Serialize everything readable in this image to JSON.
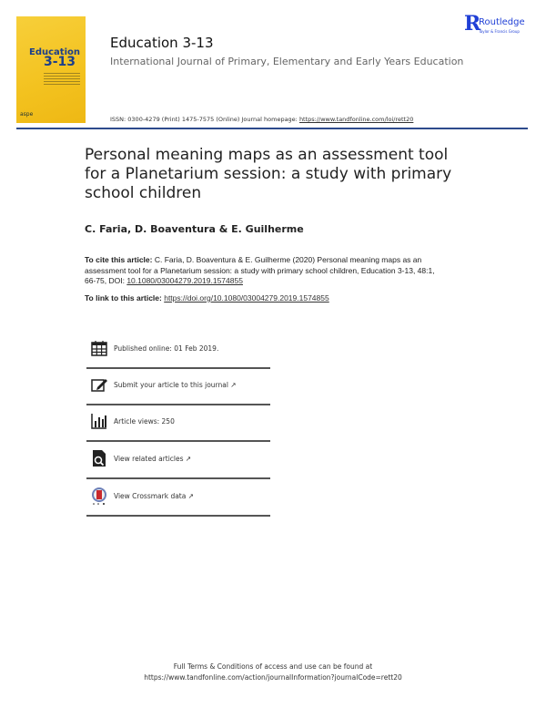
{
  "cover": {
    "title_line1": "Education",
    "title_line2": "3-13",
    "publisher_mark": "aspe"
  },
  "publisher": {
    "name": "Routledge",
    "tagline": "Taylor & Francis Group",
    "color": "#1f3fd6"
  },
  "journal": {
    "title": "Education 3-13",
    "subtitle": "International Journal of Primary, Elementary and Early Years Education",
    "issn_text": "ISSN: 0300-4279 (Print) 1475-7575 (Online) Journal homepage: ",
    "homepage_url": "https://www.tandfonline.com/loi/rett20"
  },
  "accent_color": "#2d4a8c",
  "article": {
    "title": "Personal meaning maps as an assessment tool for a Planetarium session: a study with primary school children",
    "authors": "C. Faria, D. Boaventura & E. Guilherme",
    "cite_label": "To cite this article:",
    "cite_text": " C. Faria, D. Boaventura & E. Guilherme (2020) Personal meaning maps as an assessment tool for a Planetarium session: a study with primary school children, Education 3-13, 48:1, 66-75, DOI: ",
    "doi": "10.1080/03004279.2019.1574855",
    "link_label": "To link to this article: ",
    "link_url": "https://doi.org/10.1080/03004279.2019.1574855"
  },
  "info_rows": [
    {
      "icon": "calendar-icon",
      "text": "Published online: 01 Feb 2019."
    },
    {
      "icon": "edit-icon",
      "text": "Submit your article to this journal",
      "external": true
    },
    {
      "icon": "bar-chart-icon",
      "text": "Article views: 250"
    },
    {
      "icon": "search-document-icon",
      "text": "View related articles",
      "external": true
    },
    {
      "icon": "crossmark-icon",
      "text": "View Crossmark data",
      "external": true
    }
  ],
  "footer": {
    "line1": "Full Terms & Conditions of access and use can be found at",
    "line2": "https://www.tandfonline.com/action/journalInformation?journalCode=rett20"
  }
}
